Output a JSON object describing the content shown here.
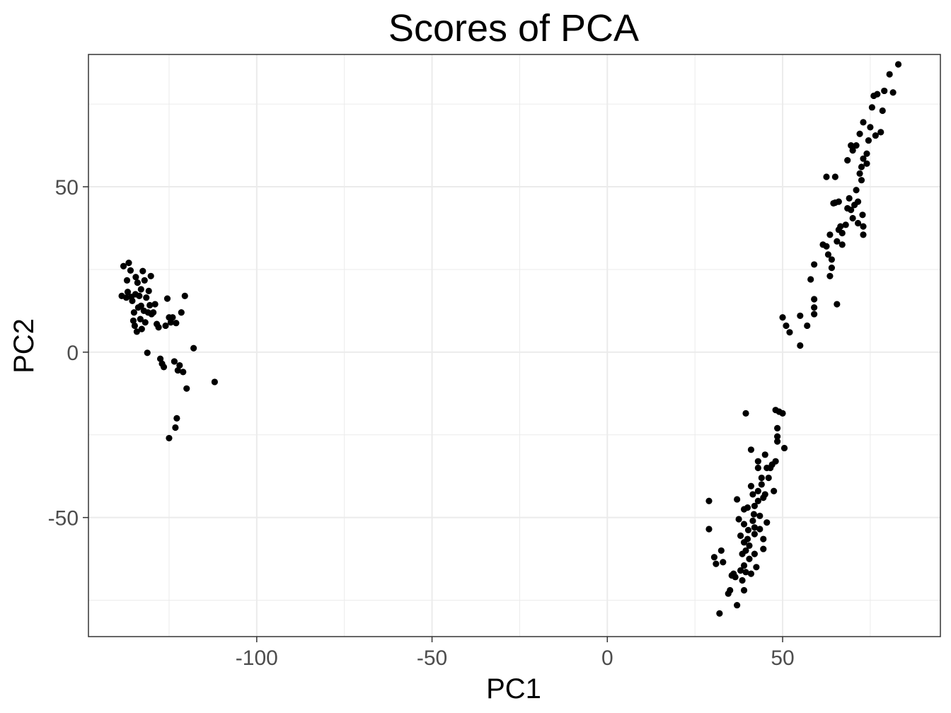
{
  "chart_data": {
    "type": "scatter",
    "title": "Scores of PCA",
    "xlabel": "PC1",
    "ylabel": "PC2",
    "xlim": [
      -148,
      95
    ],
    "ylim": [
      -86,
      90
    ],
    "x_ticks": [
      -100,
      -50,
      0,
      50
    ],
    "x_tick_labels": [
      "-100",
      "-50",
      "0",
      "50"
    ],
    "y_ticks": [
      -50,
      0,
      50
    ],
    "y_tick_labels": [
      "-50",
      "0",
      "50"
    ],
    "x_minor_ticks": [
      -125,
      -75,
      -25,
      25,
      75
    ],
    "y_minor_ticks": [
      -75,
      -25,
      25,
      75
    ],
    "grid": true,
    "legend": "none",
    "point_color": "#000000",
    "panel_border_color": "#333333",
    "grid_color": "#ebebeb",
    "points": [
      [
        -138.0,
        26.0
      ],
      [
        -137.0,
        21.7
      ],
      [
        -136.5,
        27.0
      ],
      [
        -136.0,
        24.7
      ],
      [
        -135.5,
        15.5
      ],
      [
        -135.0,
        12.0
      ],
      [
        -134.5,
        22.7
      ],
      [
        -134.0,
        21.0
      ],
      [
        -133.5,
        17.0
      ],
      [
        -133.0,
        19.0
      ],
      [
        -132.5,
        24.5
      ],
      [
        -132.0,
        21.7
      ],
      [
        -131.5,
        16.5
      ],
      [
        -131.0,
        12.0
      ],
      [
        -130.5,
        14.2
      ],
      [
        -134.8,
        8.0
      ],
      [
        -134.2,
        6.2
      ],
      [
        -133.2,
        10.0
      ],
      [
        -131.8,
        9.0
      ],
      [
        -130.0,
        11.5
      ],
      [
        -129.0,
        14.5
      ],
      [
        -128.0,
        7.5
      ],
      [
        -127.5,
        -2.0
      ],
      [
        -127.0,
        -3.5
      ],
      [
        -126.5,
        -4.5
      ],
      [
        -126.0,
        8.0
      ],
      [
        -125.5,
        16.2
      ],
      [
        -125.0,
        10.5
      ],
      [
        -124.5,
        9.0
      ],
      [
        -124.0,
        10.5
      ],
      [
        -123.5,
        -2.8
      ],
      [
        -123.0,
        8.8
      ],
      [
        -122.5,
        -5.5
      ],
      [
        -122.0,
        -4.0
      ],
      [
        -121.5,
        12.0
      ],
      [
        -121.0,
        -6.0
      ],
      [
        -120.5,
        17.0
      ],
      [
        -120.0,
        -11.0
      ],
      [
        -118.0,
        1.2
      ],
      [
        -112.0,
        -9.0
      ],
      [
        -138.5,
        17.0
      ],
      [
        -136.8,
        18.2
      ],
      [
        -135.8,
        16.7
      ],
      [
        -133.8,
        13.5
      ],
      [
        -132.8,
        7.0
      ],
      [
        -131.2,
        -0.2
      ],
      [
        -129.5,
        12.0
      ],
      [
        -122.8,
        -20.0
      ],
      [
        -123.2,
        -22.8
      ],
      [
        -125.0,
        -26.0
      ],
      [
        -137.2,
        16.5
      ],
      [
        -134.6,
        17.5
      ],
      [
        -133.0,
        14.0
      ],
      [
        -130.8,
        18.5
      ],
      [
        -128.5,
        8.5
      ],
      [
        -132.2,
        12.5
      ],
      [
        -135.2,
        9.5
      ],
      [
        -130.2,
        23.0
      ],
      [
        29.0,
        -45.0
      ],
      [
        29.0,
        -53.5
      ],
      [
        31.0,
        -64.0
      ],
      [
        32.0,
        -79.0
      ],
      [
        32.5,
        -60.0
      ],
      [
        33.0,
        -63.5
      ],
      [
        34.5,
        -73.0
      ],
      [
        35.0,
        -72.0
      ],
      [
        36.0,
        -67.0
      ],
      [
        36.5,
        -68.0
      ],
      [
        37.0,
        -76.5
      ],
      [
        37.0,
        -44.5
      ],
      [
        37.5,
        -50.5
      ],
      [
        38.0,
        -55.5
      ],
      [
        38.0,
        -66.0
      ],
      [
        38.5,
        -61.0
      ],
      [
        38.5,
        -69.0
      ],
      [
        39.0,
        -47.5
      ],
      [
        39.0,
        -52.0
      ],
      [
        39.0,
        -57.5
      ],
      [
        39.5,
        -60.0
      ],
      [
        39.0,
        -64.5
      ],
      [
        39.5,
        -66.5
      ],
      [
        39.0,
        -72.0
      ],
      [
        40.0,
        -56.5
      ],
      [
        40.0,
        -47.0
      ],
      [
        40.5,
        -58.5
      ],
      [
        40.5,
        -62.5
      ],
      [
        41.0,
        -67.0
      ],
      [
        41.0,
        -29.5
      ],
      [
        41.0,
        -40.5
      ],
      [
        41.5,
        -43.0
      ],
      [
        41.5,
        -51.0
      ],
      [
        42.0,
        -46.5
      ],
      [
        42.0,
        -53.0
      ],
      [
        42.0,
        -55.0
      ],
      [
        42.0,
        -61.0
      ],
      [
        42.5,
        -65.0
      ],
      [
        43.0,
        -33.0
      ],
      [
        43.0,
        -35.0
      ],
      [
        43.0,
        -42.0
      ],
      [
        43.0,
        -45.0
      ],
      [
        43.5,
        -49.5
      ],
      [
        43.5,
        -53.5
      ],
      [
        44.0,
        -38.0
      ],
      [
        44.0,
        -40.0
      ],
      [
        44.5,
        -56.5
      ],
      [
        44.5,
        -44.0
      ],
      [
        44.5,
        -59.5
      ],
      [
        45.0,
        -43.0
      ],
      [
        45.0,
        -31.0
      ],
      [
        45.5,
        -35.0
      ],
      [
        45.5,
        -51.5
      ],
      [
        46.0,
        -38.0
      ],
      [
        46.5,
        -35.0
      ],
      [
        47.0,
        -34.0
      ],
      [
        47.5,
        -42.0
      ],
      [
        48.0,
        -33.0
      ],
      [
        48.0,
        -17.5
      ],
      [
        48.5,
        -23.0
      ],
      [
        48.5,
        -25.5
      ],
      [
        48.5,
        -27.0
      ],
      [
        49.0,
        -18.0
      ],
      [
        50.0,
        -18.5
      ],
      [
        50.5,
        -29.0
      ],
      [
        39.5,
        -18.5
      ],
      [
        30.5,
        -62.0
      ],
      [
        35.5,
        -67.5
      ],
      [
        40.2,
        -53.8
      ],
      [
        41.8,
        -49.0
      ],
      [
        50.0,
        10.5
      ],
      [
        51.0,
        8.0
      ],
      [
        52.0,
        6.0
      ],
      [
        55.0,
        11.0
      ],
      [
        55.0,
        2.0
      ],
      [
        57.0,
        8.0
      ],
      [
        58.0,
        22.0
      ],
      [
        59.0,
        26.5
      ],
      [
        59.0,
        16.0
      ],
      [
        59.0,
        13.5
      ],
      [
        59.0,
        11.5
      ],
      [
        61.5,
        32.5
      ],
      [
        62.5,
        32.0
      ],
      [
        62.5,
        53.0
      ],
      [
        63.0,
        29.5
      ],
      [
        63.5,
        35.5
      ],
      [
        63.5,
        23.0
      ],
      [
        64.0,
        25.5
      ],
      [
        64.0,
        28.0
      ],
      [
        64.5,
        45.0
      ],
      [
        65.0,
        53.0
      ],
      [
        65.5,
        33.5
      ],
      [
        65.5,
        14.5
      ],
      [
        66.0,
        45.5
      ],
      [
        66.0,
        37.0
      ],
      [
        66.5,
        38.0
      ],
      [
        67.0,
        36.0
      ],
      [
        67.0,
        32.5
      ],
      [
        68.0,
        38.5
      ],
      [
        68.5,
        58.0
      ],
      [
        68.5,
        43.5
      ],
      [
        69.0,
        46.5
      ],
      [
        69.5,
        62.5
      ],
      [
        69.5,
        43.0
      ],
      [
        70.0,
        61.0
      ],
      [
        70.0,
        40.5
      ],
      [
        70.5,
        44.5
      ],
      [
        71.0,
        49.0
      ],
      [
        71.0,
        62.5
      ],
      [
        71.5,
        39.0
      ],
      [
        71.5,
        45.5
      ],
      [
        72.0,
        54.0
      ],
      [
        72.0,
        66.0
      ],
      [
        72.5,
        56.0
      ],
      [
        72.5,
        52.0
      ],
      [
        73.0,
        69.5
      ],
      [
        73.0,
        58.5
      ],
      [
        73.0,
        38.0
      ],
      [
        73.0,
        35.5
      ],
      [
        74.0,
        60.0
      ],
      [
        74.0,
        57.0
      ],
      [
        74.5,
        64.0
      ],
      [
        75.0,
        68.0
      ],
      [
        76.0,
        77.5
      ],
      [
        76.5,
        65.5
      ],
      [
        77.0,
        78.0
      ],
      [
        78.0,
        66.5
      ],
      [
        78.5,
        73.0
      ],
      [
        79.0,
        79.0
      ],
      [
        80.5,
        84.0
      ],
      [
        81.5,
        78.5
      ],
      [
        83.0,
        87.0
      ],
      [
        72.8,
        41.5
      ],
      [
        75.5,
        74.0
      ],
      [
        65.0,
        45.2
      ]
    ]
  }
}
